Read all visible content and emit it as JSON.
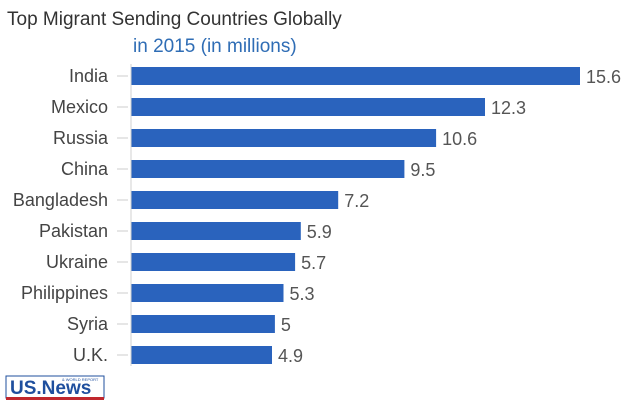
{
  "chart_data": {
    "type": "bar",
    "orientation": "horizontal",
    "title": "Top Migrant Sending Countries Globally",
    "subtitle": "in 2015 (in millions)",
    "categories": [
      "India",
      "Mexico",
      "Russia",
      "China",
      "Bangladesh",
      "Pakistan",
      "Ukraine",
      "Philippines",
      "Syria",
      "U.K."
    ],
    "values": [
      15.6,
      12.3,
      10.6,
      9.5,
      7.2,
      5.9,
      5.7,
      5.3,
      5,
      4.9
    ],
    "value_labels": [
      "15.6",
      "12.3",
      "10.6",
      "9.5",
      "7.2",
      "5.9",
      "5.7",
      "5.3",
      "5",
      "4.9"
    ],
    "xlim": [
      0,
      15.6
    ],
    "grid": false,
    "legend": "none",
    "bar_color": "#2a63bd",
    "title_color": "#333333",
    "subtitle_color": "#2f6db5"
  },
  "branding": {
    "logo": "US.News",
    "logo_small": "& WORLD REPORT",
    "logo_color": "#1f4f9e"
  }
}
